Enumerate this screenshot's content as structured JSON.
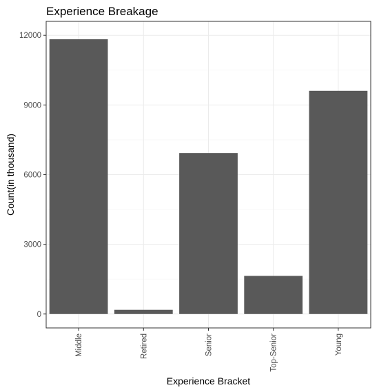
{
  "chart_data": {
    "type": "bar",
    "title": "Experience Breakage",
    "xlabel": "Experience Bracket",
    "ylabel": "Count(in thousand)",
    "categories": [
      "Middle",
      "Retired",
      "Senior",
      "Top-Senior",
      "Young"
    ],
    "values": [
      11830,
      180,
      6930,
      1640,
      9610
    ],
    "ylim": [
      -600,
      12600
    ],
    "yticks": [
      0,
      3000,
      6000,
      9000,
      12000
    ],
    "ytick_labels": [
      "0",
      "3000",
      "6000",
      "9000",
      "12000"
    ],
    "grid": true,
    "legend": "none",
    "bar_color": "#595959",
    "panel_border_color": "#333333"
  }
}
